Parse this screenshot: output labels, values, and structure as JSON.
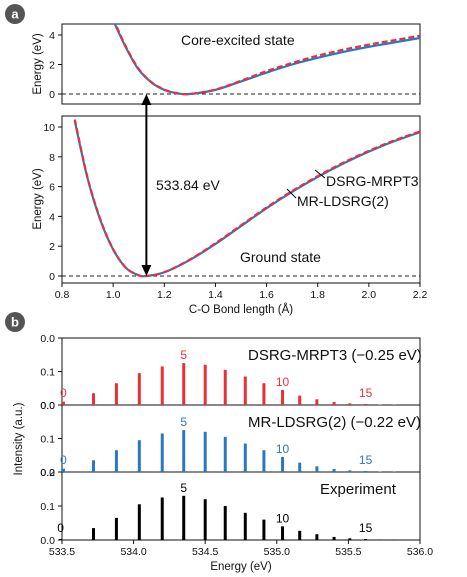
{
  "chart_data": [
    {
      "type": "line",
      "panel": "a",
      "subplot": "top",
      "annotation": "Core-excited state",
      "ylabel": "Energy (eV)",
      "xlim": [
        0.8,
        2.2
      ],
      "ylim": [
        0,
        4.5
      ],
      "yticks": [
        "0",
        "2",
        "4"
      ],
      "minimum": {
        "x": 1.28,
        "y": 0
      },
      "series": [
        {
          "name": "DSRG-MRPT3",
          "color": "#e8303a",
          "style": "dashed",
          "x": [
            1.0,
            1.05,
            1.1,
            1.15,
            1.2,
            1.25,
            1.3,
            1.4,
            1.5,
            1.6,
            1.7,
            1.8,
            1.9,
            2.0,
            2.1,
            2.2
          ],
          "y": [
            5.1,
            3.2,
            1.7,
            0.8,
            0.3,
            0.05,
            0.0,
            0.3,
            0.9,
            1.55,
            2.1,
            2.6,
            3.0,
            3.35,
            3.65,
            3.95
          ]
        },
        {
          "name": "MR-LDSRG(2)",
          "color": "#2a78c2",
          "style": "solid",
          "x": [
            1.0,
            1.05,
            1.1,
            1.15,
            1.2,
            1.25,
            1.3,
            1.4,
            1.5,
            1.6,
            1.7,
            1.8,
            1.9,
            2.0,
            2.1,
            2.2
          ],
          "y": [
            5.0,
            3.15,
            1.65,
            0.78,
            0.28,
            0.05,
            0.0,
            0.28,
            0.85,
            1.45,
            2.0,
            2.45,
            2.85,
            3.2,
            3.5,
            3.8
          ]
        }
      ]
    },
    {
      "type": "line",
      "panel": "a",
      "subplot": "bottom",
      "annotation": "Ground state",
      "arrow_label": "533.84 eV",
      "xlabel": "C-O Bond length (Å)",
      "ylabel": "Energy (eV)",
      "xlim": [
        0.8,
        2.2
      ],
      "ylim": [
        0,
        11
      ],
      "xticks": [
        "0.8",
        "1.0",
        "1.2",
        "1.4",
        "1.6",
        "1.8",
        "2.0",
        "2.2"
      ],
      "yticks": [
        "0",
        "2",
        "4",
        "6",
        "8",
        "10"
      ],
      "minimum": {
        "x": 1.13,
        "y": 0
      },
      "series": [
        {
          "name": "DSRG-MRPT3",
          "color": "#e8303a",
          "style": "dashed",
          "x": [
            0.85,
            0.9,
            0.95,
            1.0,
            1.05,
            1.1,
            1.13,
            1.2,
            1.3,
            1.4,
            1.5,
            1.6,
            1.7,
            1.8,
            1.9,
            2.0,
            2.1,
            2.2
          ],
          "y": [
            10.5,
            6.6,
            3.8,
            1.8,
            0.55,
            0.05,
            0.0,
            0.25,
            1.1,
            2.2,
            3.4,
            4.6,
            5.7,
            6.7,
            7.6,
            8.4,
            9.1,
            9.7
          ]
        },
        {
          "name": "MR-LDSRG(2)",
          "color": "#2a78c2",
          "style": "solid",
          "x": [
            0.85,
            0.9,
            0.95,
            1.0,
            1.05,
            1.1,
            1.13,
            1.2,
            1.3,
            1.4,
            1.5,
            1.6,
            1.7,
            1.8,
            1.9,
            2.0,
            2.1,
            2.2
          ],
          "y": [
            10.4,
            6.55,
            3.75,
            1.78,
            0.55,
            0.05,
            0.0,
            0.25,
            1.08,
            2.15,
            3.35,
            4.55,
            5.65,
            6.65,
            7.55,
            8.35,
            9.05,
            9.65
          ]
        }
      ]
    },
    {
      "type": "bar",
      "panel": "b",
      "subplot": "DSRG-MRPT3",
      "label": "DSRG-MRPT3 (−0.25 eV)",
      "color": "#e8303a",
      "ylim": [
        0,
        0.2
      ],
      "yticks": [
        "0.0",
        "0.1",
        "0.0"
      ],
      "x": [
        533.51,
        533.72,
        533.88,
        534.04,
        534.2,
        534.35,
        534.5,
        534.64,
        534.78,
        534.91,
        535.04,
        535.16,
        535.28,
        535.4,
        535.51,
        535.62,
        535.72,
        535.82
      ],
      "values": [
        0.01,
        0.035,
        0.065,
        0.095,
        0.115,
        0.125,
        0.12,
        0.105,
        0.085,
        0.065,
        0.045,
        0.028,
        0.017,
        0.009,
        0.005,
        0.003,
        0.0015,
        0.001
      ],
      "peak_labels": [
        {
          "text": "0",
          "x": 533.51
        },
        {
          "text": "5",
          "x": 534.35
        },
        {
          "text": "10",
          "x": 535.04
        },
        {
          "text": "15",
          "x": 535.62
        }
      ]
    },
    {
      "type": "bar",
      "panel": "b",
      "subplot": "MR-LDSRG(2)",
      "label": "MR-LDSRG(2) (−0.22 eV)",
      "color": "#2a78c2",
      "ylim": [
        0,
        0.2
      ],
      "yticks": [
        "0.0",
        "0.1",
        "0.0"
      ],
      "x": [
        533.51,
        533.72,
        533.88,
        534.04,
        534.2,
        534.35,
        534.5,
        534.64,
        534.78,
        534.91,
        535.04,
        535.16,
        535.28,
        535.4,
        535.51,
        535.62,
        535.72,
        535.82
      ],
      "values": [
        0.01,
        0.035,
        0.065,
        0.095,
        0.115,
        0.125,
        0.12,
        0.105,
        0.085,
        0.065,
        0.045,
        0.028,
        0.017,
        0.009,
        0.005,
        0.003,
        0.0015,
        0.001
      ],
      "peak_labels": [
        {
          "text": "0",
          "x": 533.51
        },
        {
          "text": "5",
          "x": 534.35
        },
        {
          "text": "10",
          "x": 535.04
        },
        {
          "text": "15",
          "x": 535.62
        }
      ]
    },
    {
      "type": "bar",
      "panel": "b",
      "subplot": "Experiment",
      "label": "Experiment",
      "color": "#000000",
      "xlabel": "Energy (eV)",
      "ylabel": "Intensity (a.u.)",
      "xlim": [
        533.5,
        536.0
      ],
      "ylim": [
        0,
        0.2
      ],
      "yticks": [
        "0.0",
        "0.1",
        "0.2"
      ],
      "xticks": [
        "533.5",
        "534.0",
        "534.5",
        "535.0",
        "535.5",
        "536.0"
      ],
      "x": [
        533.49,
        533.72,
        533.88,
        534.04,
        534.2,
        534.35,
        534.5,
        534.64,
        534.78,
        534.91,
        535.04,
        535.16,
        535.28,
        535.4,
        535.51,
        535.62,
        535.72,
        535.82
      ],
      "values": [
        0.003,
        0.035,
        0.065,
        0.105,
        0.125,
        0.13,
        0.12,
        0.1,
        0.08,
        0.06,
        0.04,
        0.027,
        0.017,
        0.009,
        0.005,
        0.003,
        0.0015,
        0.001
      ],
      "peak_labels": [
        {
          "text": "0",
          "x": 533.49
        },
        {
          "text": "5",
          "x": 534.35
        },
        {
          "text": "10",
          "x": 535.04
        },
        {
          "text": "15",
          "x": 535.62
        }
      ]
    }
  ],
  "panel_labels": {
    "a": "a",
    "b": "b"
  },
  "curve_labels": {
    "mrpt3": "DSRG-MRPT3",
    "ldsrg": "MR-LDSRG(2)"
  },
  "colors": {
    "mrpt3": "#e8303a",
    "ldsrg": "#2a78c2",
    "exp": "#000000",
    "axis": "#111111"
  }
}
